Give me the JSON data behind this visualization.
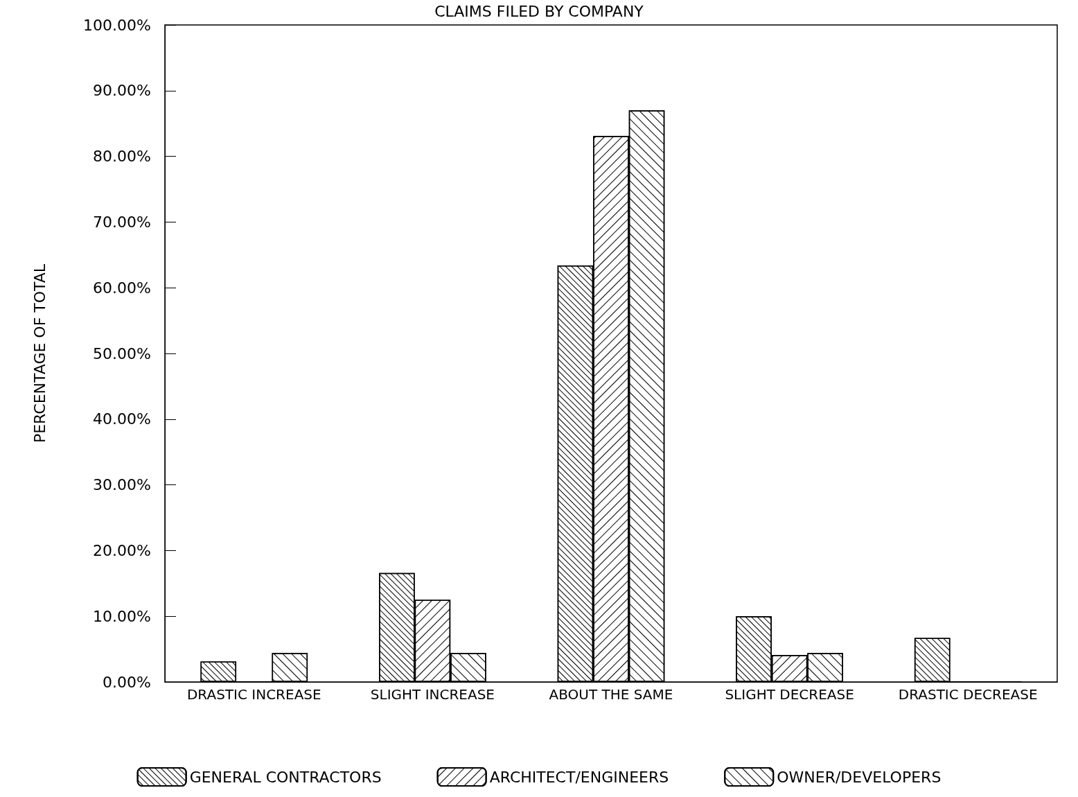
{
  "chart_data": {
    "type": "bar",
    "title": "CLAIMS FILED BY COMPANY",
    "ylabel": "PERCENTAGE OF TOTAL",
    "categories": [
      "DRASTIC INCREASE",
      "SLIGHT INCREASE",
      "ABOUT THE SAME",
      "SLIGHT DECREASE",
      "DRASTIC DECREASE"
    ],
    "series": [
      {
        "name": "GENERAL CONTRACTORS",
        "color": "#000000",
        "values": [
          3.1,
          16.6,
          63.4,
          10.0,
          6.7
        ]
      },
      {
        "name": "ARCHITECT/ENGINEERS",
        "color": "#000000",
        "values": [
          0,
          12.5,
          83.1,
          4.1,
          0
        ]
      },
      {
        "name": "OWNER/DEVELOPERS",
        "color": "#000000",
        "values": [
          4.4,
          4.4,
          87.0,
          4.4,
          0
        ]
      }
    ],
    "ylim": [
      0,
      100
    ],
    "yticks": [
      {
        "value": 0,
        "label": "0.00%"
      },
      {
        "value": 10,
        "label": "10.00%"
      },
      {
        "value": 20,
        "label": "20.00%"
      },
      {
        "value": 30,
        "label": "30.00%"
      },
      {
        "value": 40,
        "label": "40.00%"
      },
      {
        "value": 50,
        "label": "50.00%"
      },
      {
        "value": 60,
        "label": "60.00%"
      },
      {
        "value": 70,
        "label": "70.00%"
      },
      {
        "value": 80,
        "label": "80.00%"
      },
      {
        "value": 90,
        "label": "90.00%"
      },
      {
        "value": 100,
        "label": "100.00%"
      }
    ],
    "grid": false,
    "legend": "bottom"
  }
}
